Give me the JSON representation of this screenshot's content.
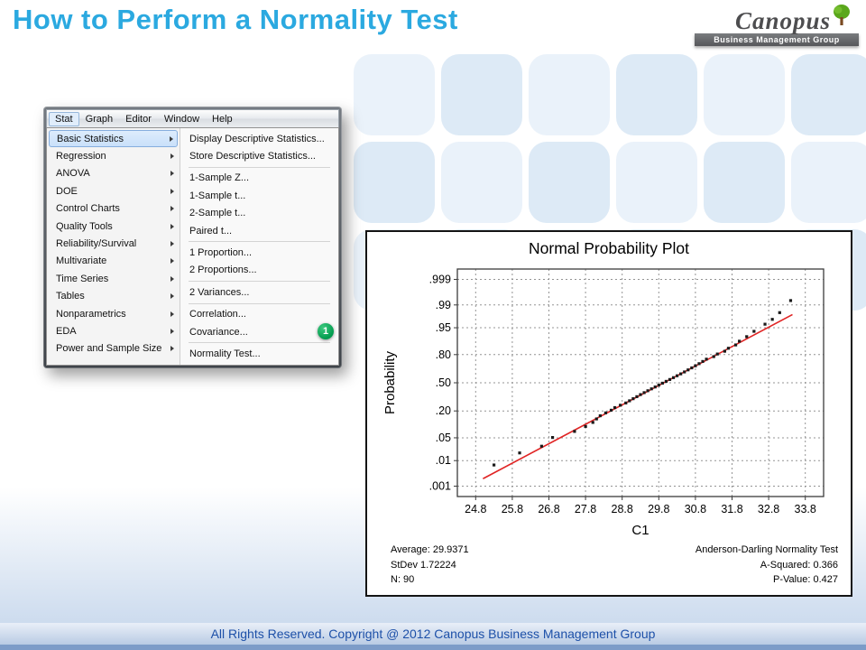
{
  "slide": {
    "title": "How to Perform a Normality Test",
    "footer": "All Rights Reserved. Copyright @ 2012 Canopus Business Management Group"
  },
  "logo": {
    "brand": "Canopus",
    "tagline": "Business Management Group"
  },
  "minitab": {
    "menubar": {
      "items": [
        "Stat",
        "Graph",
        "Editor",
        "Window",
        "Help"
      ],
      "active": "Stat"
    },
    "stat_menu": {
      "items": [
        "Basic Statistics",
        "Regression",
        "ANOVA",
        "DOE",
        "Control Charts",
        "Quality Tools",
        "Reliability/Survival",
        "Multivariate",
        "Time Series",
        "Tables",
        "Nonparametrics",
        "EDA",
        "Power and Sample Size"
      ],
      "active": "Basic Statistics"
    },
    "basic_statistics_submenu": {
      "groups": [
        [
          "Display Descriptive Statistics...",
          "Store Descriptive Statistics..."
        ],
        [
          "1-Sample Z...",
          "1-Sample t...",
          "2-Sample t...",
          "Paired t..."
        ],
        [
          "1 Proportion...",
          "2 Proportions..."
        ],
        [
          "2 Variances..."
        ],
        [
          "Correlation...",
          "Covariance..."
        ],
        [
          "Normality Test..."
        ]
      ],
      "highlight_badge": "1",
      "badge_color": "#00a651"
    }
  },
  "chart_data": {
    "type": "scatter",
    "title": "Normal Probability Plot",
    "xlabel": "C1",
    "ylabel": "Probability",
    "x_ticks": [
      24.8,
      25.8,
      26.8,
      27.8,
      28.8,
      29.8,
      30.8,
      31.8,
      32.8,
      33.8
    ],
    "x_range": [
      24.3,
      34.3
    ],
    "y_ticks": [
      0.999,
      0.99,
      0.95,
      0.8,
      0.5,
      0.2,
      0.05,
      0.01,
      0.001
    ],
    "y_tick_labels": [
      ".999",
      ".99",
      ".95",
      ".80",
      ".50",
      ".20",
      ".05",
      ".01",
      ".001"
    ],
    "y_scale": "normal-quantile",
    "z_range": [
      -3.4,
      3.4
    ],
    "grid": "dashed",
    "fit_line": {
      "mean": 29.9371,
      "stdev": 1.72224,
      "color": "#e02424",
      "x_start": 25.0,
      "x_end": 33.45
    },
    "point_color": "#1a1a1a",
    "points": [
      [
        25.3,
        0.007
      ],
      [
        26.0,
        0.018
      ],
      [
        26.6,
        0.029
      ],
      [
        26.9,
        0.051
      ],
      [
        27.5,
        0.073
      ],
      [
        27.8,
        0.096
      ],
      [
        28.0,
        0.118
      ],
      [
        28.1,
        0.14
      ],
      [
        28.2,
        0.162
      ],
      [
        28.35,
        0.184
      ],
      [
        28.5,
        0.206
      ],
      [
        28.6,
        0.229
      ],
      [
        28.75,
        0.251
      ],
      [
        28.9,
        0.273
      ],
      [
        29.0,
        0.295
      ],
      [
        29.1,
        0.317
      ],
      [
        29.2,
        0.339
      ],
      [
        29.3,
        0.362
      ],
      [
        29.4,
        0.384
      ],
      [
        29.5,
        0.406
      ],
      [
        29.6,
        0.428
      ],
      [
        29.7,
        0.45
      ],
      [
        29.8,
        0.472
      ],
      [
        29.9,
        0.495
      ],
      [
        30.0,
        0.517
      ],
      [
        30.1,
        0.539
      ],
      [
        30.2,
        0.561
      ],
      [
        30.3,
        0.583
      ],
      [
        30.4,
        0.605
      ],
      [
        30.5,
        0.627
      ],
      [
        30.6,
        0.65
      ],
      [
        30.7,
        0.672
      ],
      [
        30.8,
        0.694
      ],
      [
        30.9,
        0.716
      ],
      [
        31.0,
        0.738
      ],
      [
        31.1,
        0.76
      ],
      [
        31.3,
        0.783
      ],
      [
        31.4,
        0.805
      ],
      [
        31.6,
        0.827
      ],
      [
        31.7,
        0.849
      ],
      [
        31.9,
        0.871
      ],
      [
        32.0,
        0.893
      ],
      [
        32.2,
        0.916
      ],
      [
        32.4,
        0.938
      ],
      [
        32.7,
        0.96
      ],
      [
        32.9,
        0.971
      ],
      [
        33.1,
        0.982
      ],
      [
        33.4,
        0.993
      ]
    ],
    "annotations": {
      "left": [
        "Average: 29.9371",
        "StDev 1.72224",
        "N: 90"
      ],
      "right": [
        "Anderson-Darling Normality Test",
        "A-Squared: 0.366",
        "P-Value: 0.427"
      ]
    }
  }
}
